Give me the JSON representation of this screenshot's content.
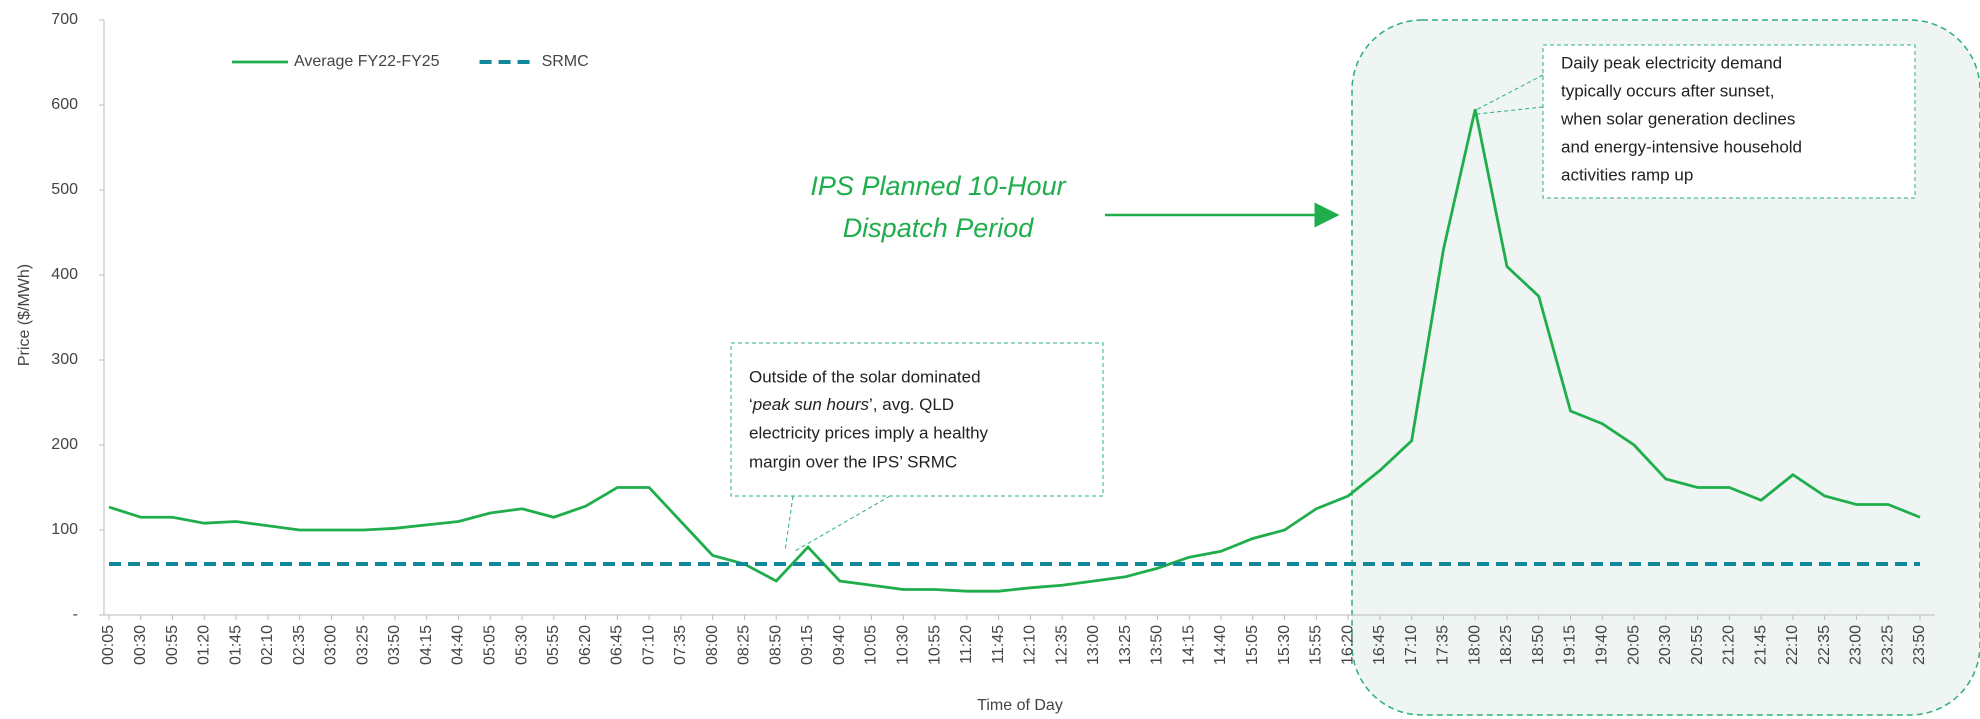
{
  "chart_data": {
    "type": "line",
    "ylabel": "Price ($/MWh)",
    "xlabel": "Time of Day",
    "categories": [
      "00:05",
      "00:30",
      "00:55",
      "01:20",
      "01:45",
      "02:10",
      "02:35",
      "03:00",
      "03:25",
      "03:50",
      "04:15",
      "04:40",
      "05:05",
      "05:30",
      "05:55",
      "06:20",
      "06:45",
      "07:10",
      "07:35",
      "08:00",
      "08:25",
      "08:50",
      "09:15",
      "09:40",
      "10:05",
      "10:30",
      "10:55",
      "11:20",
      "11:45",
      "12:10",
      "12:35",
      "13:00",
      "13:25",
      "13:50",
      "14:15",
      "14:40",
      "15:05",
      "15:30",
      "15:55",
      "16:20",
      "16:45",
      "17:10",
      "17:35",
      "18:00",
      "18:25",
      "18:50",
      "19:15",
      "19:40",
      "20:05",
      "20:30",
      "20:55",
      "21:20",
      "21:45",
      "22:10",
      "22:35",
      "23:00",
      "23:25",
      "23:50"
    ],
    "series": [
      {
        "name": "Average FY22-FY25",
        "color": "#1fae4b",
        "dash": false,
        "values": [
          127,
          115,
          115,
          108,
          110,
          105,
          100,
          100,
          100,
          102,
          106,
          110,
          120,
          125,
          115,
          128,
          150,
          150,
          110,
          70,
          60,
          40,
          80,
          40,
          35,
          30,
          30,
          28,
          28,
          32,
          35,
          40,
          45,
          55,
          68,
          75,
          90,
          100,
          125,
          140,
          170,
          205,
          430,
          595,
          410,
          375,
          240,
          225,
          200,
          160,
          150,
          150,
          135,
          165,
          140,
          130,
          130,
          115
        ]
      },
      {
        "name": "SRMC",
        "color": "#12899b",
        "dash": true,
        "values": [
          60,
          60,
          60,
          60,
          60,
          60,
          60,
          60,
          60,
          60,
          60,
          60,
          60,
          60,
          60,
          60,
          60,
          60,
          60,
          60,
          60,
          60,
          60,
          60,
          60,
          60,
          60,
          60,
          60,
          60,
          60,
          60,
          60,
          60,
          60,
          60,
          60,
          60,
          60,
          60,
          60,
          60,
          60,
          60,
          60,
          60,
          60,
          60,
          60,
          60,
          60,
          60,
          60,
          60,
          60,
          60,
          60,
          60
        ]
      }
    ],
    "ylim": [
      0,
      700
    ],
    "yticks": [
      {
        "value": 0,
        "label": "-"
      },
      100,
      200,
      300,
      400,
      500,
      600,
      700
    ],
    "legend": "top-left",
    "annotations": {
      "dispatch": [
        "IPS Planned 10-Hour",
        "Dispatch Period"
      ],
      "peak": [
        "Daily peak electricity demand",
        "typically occurs after sunset,",
        "when solar generation declines",
        "and energy-intensive household",
        "activities ramp up"
      ],
      "solar": {
        "line1": "Outside of the solar dominated",
        "line2": [
          "‘",
          "peak sun hours",
          "’, avg. QLD"
        ],
        "rest": [
          "electricity prices imply a healthy",
          "margin over the IPS’ SRMC"
        ]
      }
    }
  }
}
